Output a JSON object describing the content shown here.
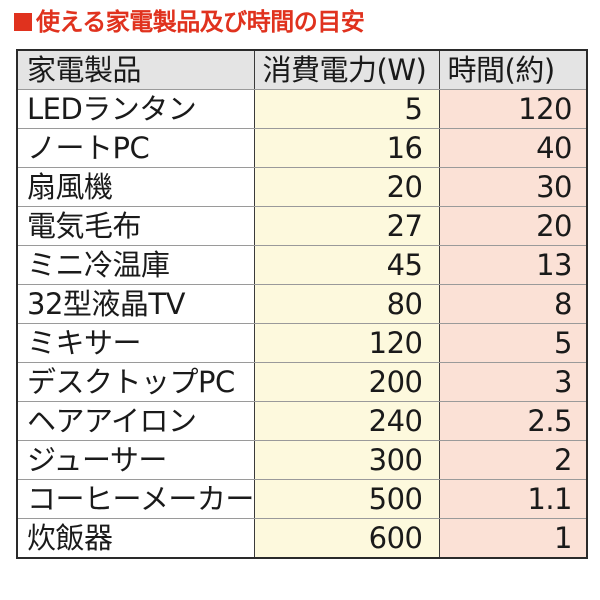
{
  "title": {
    "icon": "filled-square",
    "text": "使える家電製品及び時間の目安",
    "color": "#e0321e"
  },
  "table": {
    "headers": [
      "家電製品",
      "消費電力(W)",
      "時間(約)"
    ],
    "colors": {
      "header_bg": "#e4e4e4",
      "watts_bg": "#fdf9dd",
      "hours_bg": "#fbe1d6"
    },
    "rows": [
      {
        "name": "LEDランタン",
        "watts": "5",
        "hours": "120"
      },
      {
        "name": "ノートPC",
        "watts": "16",
        "hours": "40"
      },
      {
        "name": "扇風機",
        "watts": "20",
        "hours": "30"
      },
      {
        "name": "電気毛布",
        "watts": "27",
        "hours": "20"
      },
      {
        "name": "ミニ冷温庫",
        "watts": "45",
        "hours": "13"
      },
      {
        "name": "32型液晶TV",
        "watts": "80",
        "hours": "8"
      },
      {
        "name": "ミキサー",
        "watts": "120",
        "hours": "5"
      },
      {
        "name": "デスクトップPC",
        "watts": "200",
        "hours": "3"
      },
      {
        "name": "ヘアアイロン",
        "watts": "240",
        "hours": "2.5"
      },
      {
        "name": "ジューサー",
        "watts": "300",
        "hours": "2"
      },
      {
        "name": "コーヒーメーカー",
        "watts": "500",
        "hours": "1.1"
      },
      {
        "name": "炊飯器",
        "watts": "600",
        "hours": "1"
      }
    ]
  }
}
